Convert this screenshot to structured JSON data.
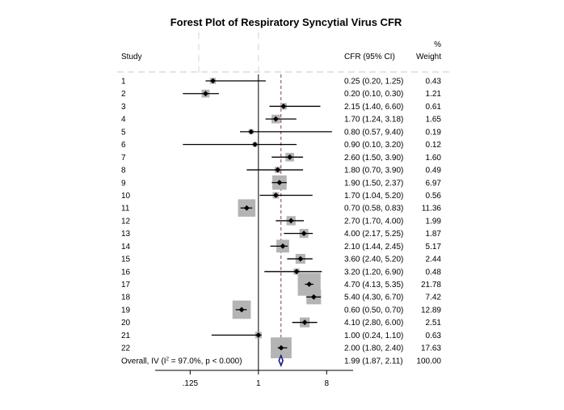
{
  "chart_data": {
    "type": "forest",
    "title": "Forest Plot of Respiratory Syncytial Virus CFR",
    "headers": {
      "study": "Study",
      "ci": "CFR (95% CI)",
      "weight_top": "%",
      "weight_bottom": "Weight"
    },
    "x_scale": "log",
    "xlim": [
      0.055,
      14
    ],
    "x_ticks": [
      {
        "value": 0.125,
        "label": ".125"
      },
      {
        "value": 1,
        "label": "1"
      },
      {
        "value": 8,
        "label": "8"
      }
    ],
    "null_line": 1,
    "pooled_line": 1.99,
    "studies": [
      {
        "label": "1",
        "est": 0.25,
        "lo": 0.2,
        "hi": 1.25,
        "ci_text": "0.25 (0.20, 1.25)",
        "weight": 0.43,
        "weight_text": "0.43"
      },
      {
        "label": "2",
        "est": 0.2,
        "lo": 0.1,
        "hi": 0.3,
        "ci_text": "0.20 (0.10, 0.30)",
        "weight": 1.21,
        "weight_text": "1.21"
      },
      {
        "label": "3",
        "est": 2.15,
        "lo": 1.4,
        "hi": 6.6,
        "ci_text": "2.15 (1.40, 6.60)",
        "weight": 0.61,
        "weight_text": "0.61"
      },
      {
        "label": "4",
        "est": 1.7,
        "lo": 1.24,
        "hi": 3.18,
        "ci_text": "1.70 (1.24, 3.18)",
        "weight": 1.65,
        "weight_text": "1.65"
      },
      {
        "label": "5",
        "est": 0.8,
        "lo": 0.57,
        "hi": 9.4,
        "ci_text": "0.80 (0.57, 9.40)",
        "weight": 0.19,
        "weight_text": "0.19"
      },
      {
        "label": "6",
        "est": 0.9,
        "lo": 0.1,
        "hi": 3.2,
        "ci_text": "0.90 (0.10, 3.20)",
        "weight": 0.12,
        "weight_text": "0.12"
      },
      {
        "label": "7",
        "est": 2.6,
        "lo": 1.5,
        "hi": 3.9,
        "ci_text": "2.60 (1.50, 3.90)",
        "weight": 1.6,
        "weight_text": "1.60"
      },
      {
        "label": "8",
        "est": 1.8,
        "lo": 0.7,
        "hi": 3.9,
        "ci_text": "1.80 (0.70, 3.90)",
        "weight": 0.49,
        "weight_text": "0.49"
      },
      {
        "label": "9",
        "est": 1.9,
        "lo": 1.5,
        "hi": 2.37,
        "ci_text": "1.90 (1.50, 2.37)",
        "weight": 6.97,
        "weight_text": "6.97"
      },
      {
        "label": "10",
        "est": 1.7,
        "lo": 1.04,
        "hi": 5.2,
        "ci_text": "1.70 (1.04, 5.20)",
        "weight": 0.56,
        "weight_text": "0.56"
      },
      {
        "label": "11",
        "est": 0.7,
        "lo": 0.58,
        "hi": 0.83,
        "ci_text": "0.70 (0.58, 0.83)",
        "weight": 11.36,
        "weight_text": "11.36"
      },
      {
        "label": "12",
        "est": 2.7,
        "lo": 1.7,
        "hi": 4.0,
        "ci_text": "2.70 (1.70, 4.00)",
        "weight": 1.99,
        "weight_text": "1.99"
      },
      {
        "label": "13",
        "est": 4.0,
        "lo": 2.17,
        "hi": 5.25,
        "ci_text": "4.00 (2.17, 5.25)",
        "weight": 1.87,
        "weight_text": "1.87"
      },
      {
        "label": "14",
        "est": 2.1,
        "lo": 1.44,
        "hi": 2.45,
        "ci_text": "2.10 (1.44, 2.45)",
        "weight": 5.17,
        "weight_text": "5.17"
      },
      {
        "label": "15",
        "est": 3.6,
        "lo": 2.4,
        "hi": 5.2,
        "ci_text": "3.60 (2.40, 5.20)",
        "weight": 2.44,
        "weight_text": "2.44"
      },
      {
        "label": "16",
        "est": 3.2,
        "lo": 1.2,
        "hi": 6.9,
        "ci_text": "3.20 (1.20, 6.90)",
        "weight": 0.48,
        "weight_text": "0.48"
      },
      {
        "label": "17",
        "est": 4.7,
        "lo": 4.13,
        "hi": 5.35,
        "ci_text": "4.70 (4.13, 5.35)",
        "weight": 21.78,
        "weight_text": "21.78"
      },
      {
        "label": "18",
        "est": 5.4,
        "lo": 4.3,
        "hi": 6.7,
        "ci_text": "5.40 (4.30, 6.70)",
        "weight": 7.42,
        "weight_text": "7.42"
      },
      {
        "label": "19",
        "est": 0.6,
        "lo": 0.5,
        "hi": 0.7,
        "ci_text": "0.60 (0.50, 0.70)",
        "weight": 12.89,
        "weight_text": "12.89"
      },
      {
        "label": "20",
        "est": 4.1,
        "lo": 2.8,
        "hi": 6.0,
        "ci_text": "4.10 (2.80, 6.00)",
        "weight": 2.51,
        "weight_text": "2.51"
      },
      {
        "label": "21",
        "est": 1.0,
        "lo": 0.24,
        "hi": 1.1,
        "ci_text": "1.00 (0.24, 1.10)",
        "weight": 0.63,
        "weight_text": "0.63"
      },
      {
        "label": "22",
        "est": 2.0,
        "lo": 1.8,
        "hi": 2.4,
        "ci_text": "2.00 (1.80, 2.40)",
        "weight": 17.63,
        "weight_text": "17.63"
      }
    ],
    "overall": {
      "label_prefix": "Overall, IV (I",
      "label_sup": "2",
      "label_suffix": " = 97.0%, p < 0.000)",
      "est": 1.99,
      "lo": 1.87,
      "hi": 2.11,
      "ci_text": "1.99 (1.87, 2.11)",
      "weight_text": "100.00"
    },
    "colors": {
      "box": "#b4b4b4",
      "marker": "#000000",
      "diamond": "#1a1a80",
      "pooled_line": "#8c3a3a",
      "dash": "#dcdcdc",
      "axis": "#000000"
    }
  }
}
